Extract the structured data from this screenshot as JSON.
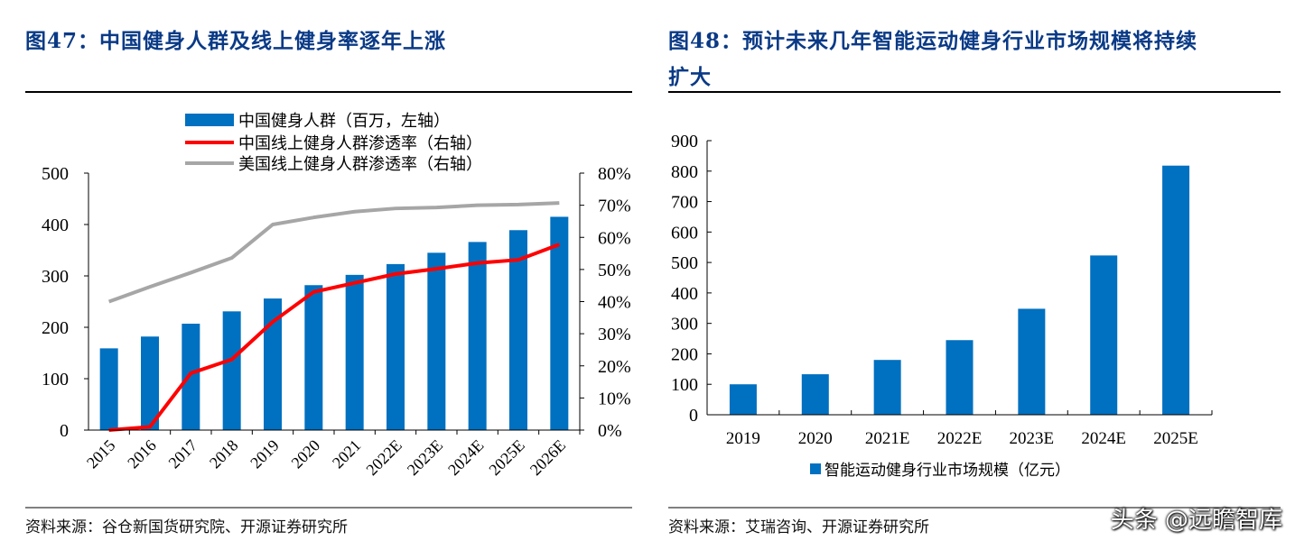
{
  "left": {
    "title": "图47：中国健身人群及线上健身率逐年上涨",
    "source": "资料来源：谷仓新国货研究院、开源证券研究所"
  },
  "right": {
    "title_line1": "图48：预计未来几年智能运动健身行业市场规模将持续",
    "title_line2": "扩大",
    "source": "资料来源：艾瑞咨询、开源证券研究所"
  },
  "watermark": "头条 @远瞻智库",
  "chart_data": [
    {
      "type": "bar+line",
      "categories": [
        "2015",
        "2016",
        "2017",
        "2018",
        "2019",
        "2020",
        "2021",
        "2022E",
        "2023E",
        "2024E",
        "2025E",
        "2026E"
      ],
      "series": [
        {
          "name": "中国健身人群（百万，左轴）",
          "type": "bar",
          "axis": "left",
          "color": "#0070c0",
          "values": [
            159,
            182,
            207,
            231,
            256,
            282,
            302,
            323,
            345,
            366,
            389,
            415
          ]
        },
        {
          "name": "中国线上健身人群渗透率（右轴）",
          "type": "line",
          "axis": "right",
          "color": "#ff0000",
          "values": [
            0,
            1,
            17.7,
            22,
            33.7,
            43,
            45.8,
            48.6,
            50.2,
            52,
            53,
            57.8
          ]
        },
        {
          "name": "美国线上健身人群渗透率（右轴）",
          "type": "line",
          "axis": "right",
          "color": "#a6a6a6",
          "values": [
            40,
            44.6,
            49,
            53.6,
            64,
            66.2,
            68,
            69,
            69.3,
            70,
            70.2,
            70.7
          ]
        }
      ],
      "yleft": {
        "lim": [
          0,
          500
        ],
        "ticks": [
          "0",
          "100",
          "200",
          "300",
          "400",
          "500"
        ]
      },
      "yright": {
        "lim": [
          0,
          80
        ],
        "ticks": [
          "0%",
          "10%",
          "20%",
          "30%",
          "40%",
          "50%",
          "60%",
          "70%",
          "80%"
        ]
      },
      "legend": "top-center",
      "grid": false
    },
    {
      "type": "bar",
      "categories": [
        "2019",
        "2020",
        "2021E",
        "2022E",
        "2023E",
        "2024E",
        "2025E"
      ],
      "series": [
        {
          "name": "智能运动健身行业市场规模（亿元）",
          "color": "#0070c0",
          "values": [
            100,
            133,
            180,
            245,
            348,
            523,
            818
          ]
        }
      ],
      "ylim": [
        0,
        900
      ],
      "yticks": [
        "0",
        "100",
        "200",
        "300",
        "400",
        "500",
        "600",
        "700",
        "800",
        "900"
      ],
      "legend": "bottom",
      "grid": false
    }
  ]
}
